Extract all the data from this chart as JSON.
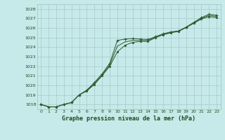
{
  "bg_color": "#c6eaea",
  "grid_color": "#9fbfbf",
  "line_color": "#2d5a2d",
  "marker_color": "#2d5a2d",
  "title": "Graphe pression niveau de la mer (hPa)",
  "title_color": "#1a4d1a",
  "ylim": [
    1017.5,
    1028.5
  ],
  "xlim": [
    -0.5,
    23.5
  ],
  "yticks": [
    1018,
    1019,
    1020,
    1021,
    1022,
    1023,
    1024,
    1025,
    1026,
    1027,
    1028
  ],
  "xticks": [
    0,
    1,
    2,
    3,
    4,
    5,
    6,
    7,
    8,
    9,
    10,
    11,
    12,
    13,
    14,
    15,
    16,
    17,
    18,
    19,
    20,
    21,
    22,
    23
  ],
  "series1_x": [
    0,
    1,
    2,
    3,
    4,
    5,
    6,
    7,
    8,
    9,
    10,
    11,
    12,
    13,
    14,
    15,
    16,
    17,
    18,
    19,
    20,
    21,
    22,
    23
  ],
  "series1_y": [
    1018.0,
    1017.75,
    1017.75,
    1018.0,
    1018.2,
    1019.0,
    1019.5,
    1020.3,
    1021.2,
    1022.3,
    1024.7,
    1024.85,
    1024.9,
    1024.85,
    1024.8,
    1025.1,
    1025.4,
    1025.6,
    1025.7,
    1026.1,
    1026.6,
    1027.1,
    1027.45,
    1027.35
  ],
  "series2_x": [
    0,
    1,
    2,
    3,
    4,
    5,
    6,
    7,
    8,
    9,
    10,
    11,
    12,
    13,
    14,
    15,
    16,
    17,
    18,
    19,
    20,
    21,
    22,
    23
  ],
  "series2_y": [
    1018.0,
    1017.75,
    1017.75,
    1018.0,
    1018.2,
    1019.0,
    1019.4,
    1020.1,
    1021.0,
    1022.0,
    1023.5,
    1024.2,
    1024.5,
    1024.6,
    1024.6,
    1025.0,
    1025.3,
    1025.5,
    1025.65,
    1026.05,
    1026.5,
    1026.95,
    1027.2,
    1027.1
  ],
  "series3_x": [
    0,
    1,
    2,
    3,
    4,
    5,
    6,
    7,
    8,
    9,
    10,
    11,
    12,
    13,
    14,
    15,
    16,
    17,
    18,
    19,
    20,
    21,
    22,
    23
  ],
  "series3_y": [
    1018.0,
    1017.75,
    1017.75,
    1018.0,
    1018.2,
    1019.0,
    1019.45,
    1020.2,
    1021.1,
    1022.15,
    1024.1,
    1024.55,
    1024.7,
    1024.7,
    1024.7,
    1025.05,
    1025.35,
    1025.55,
    1025.67,
    1026.07,
    1026.55,
    1027.02,
    1027.32,
    1027.22
  ]
}
